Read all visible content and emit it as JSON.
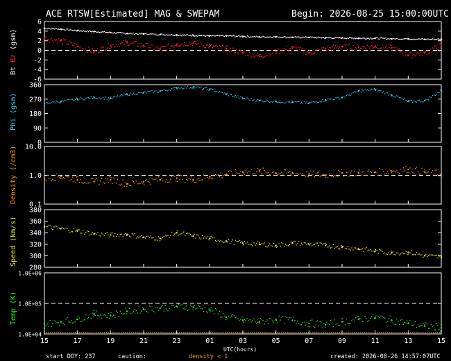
{
  "header": {
    "title": "ACE RTSW[Estimated] MAG & SWEPAM",
    "begin": "Begin: 2026-08-25 15:00:00UTC"
  },
  "footer": {
    "start_doy": "start DOY: 237",
    "caution": "caution:",
    "density_note": "density < 1",
    "created": "created: 2026-08-26 14:57:07UTC"
  },
  "x_axis": {
    "label": "UTC(hours)",
    "ticks": [
      "15",
      "17",
      "19",
      "21",
      "23",
      "01",
      "03",
      "05",
      "07",
      "09",
      "11",
      "13",
      "15"
    ]
  },
  "colors": {
    "bt": "#ffffff",
    "bz": "#ff2020",
    "phi": "#33ccee",
    "density": "#ff9900",
    "speed": "#eeee22",
    "temp": "#22ee22",
    "axes": "#ffffff"
  },
  "chart_data": [
    {
      "type": "scatter",
      "panel": "mag",
      "ylabel_parts": [
        "Bt",
        "Bz",
        "(gsm)"
      ],
      "ylim": [
        -6,
        6
      ],
      "yticks": [
        "6",
        "4",
        "2",
        "0",
        "-2",
        "-4",
        "-6"
      ],
      "dashed_zero": true,
      "x": [
        0,
        1,
        2,
        3,
        4,
        5,
        6,
        7,
        8,
        9,
        10,
        11,
        12,
        13,
        14,
        15,
        16,
        17,
        18,
        19,
        20,
        21,
        22,
        23,
        24
      ],
      "series": [
        {
          "name": "Bt",
          "values": [
            4.6,
            4.4,
            4.1,
            3.9,
            3.7,
            3.5,
            3.4,
            3.3,
            3.2,
            3.1,
            3.0,
            3.0,
            2.9,
            2.8,
            2.8,
            2.7,
            2.7,
            2.6,
            2.6,
            2.5,
            2.5,
            2.4,
            2.4,
            2.3,
            2.3
          ]
        },
        {
          "name": "Bz",
          "values": [
            2.5,
            2.0,
            0.8,
            -0.3,
            1.0,
            1.6,
            1.0,
            0.3,
            1.3,
            1.5,
            0.8,
            0.3,
            -0.5,
            -1.2,
            -0.2,
            0.5,
            -0.5,
            0.3,
            0.8,
            0.6,
            0.9,
            0.5,
            -1.0,
            -0.5,
            1.0
          ]
        }
      ]
    },
    {
      "type": "scatter",
      "panel": "phi",
      "ylabel": "Phi (gsm)",
      "ylim": [
        0,
        360
      ],
      "yticks": [
        "360",
        "270",
        "180",
        "90",
        "0"
      ],
      "x": [
        0,
        1,
        2,
        3,
        4,
        5,
        6,
        7,
        8,
        9,
        10,
        11,
        12,
        13,
        14,
        15,
        16,
        17,
        18,
        19,
        20,
        21,
        22,
        23,
        24
      ],
      "values": [
        245,
        255,
        270,
        280,
        275,
        300,
        310,
        320,
        340,
        345,
        330,
        300,
        275,
        260,
        255,
        250,
        245,
        265,
        280,
        320,
        330,
        295,
        255,
        260,
        325
      ]
    },
    {
      "type": "scatter",
      "panel": "density",
      "ylabel": "Density (/cm3)",
      "ylim": [
        0.1,
        10.0
      ],
      "log": true,
      "yticks": [
        "10.0",
        "1.0",
        "0.1"
      ],
      "dashed_value": 1.0,
      "x": [
        0,
        1,
        2,
        3,
        4,
        5,
        6,
        7,
        8,
        9,
        10,
        11,
        12,
        13,
        14,
        15,
        16,
        17,
        18,
        19,
        20,
        21,
        22,
        23,
        24
      ],
      "values": [
        0.8,
        0.9,
        0.7,
        0.6,
        0.7,
        0.5,
        0.6,
        0.7,
        0.8,
        0.7,
        0.9,
        1.1,
        1.3,
        1.4,
        1.2,
        1.2,
        1.1,
        1.0,
        1.2,
        1.2,
        1.3,
        1.4,
        1.6,
        1.3,
        1.1
      ]
    },
    {
      "type": "scatter",
      "panel": "speed",
      "ylabel": "Speed (km/s)",
      "ylim": [
        280,
        380
      ],
      "yticks": [
        "380",
        "360",
        "340",
        "320",
        "300",
        "280"
      ],
      "x": [
        0,
        1,
        2,
        3,
        4,
        5,
        6,
        7,
        8,
        9,
        10,
        11,
        12,
        13,
        14,
        15,
        16,
        17,
        18,
        19,
        20,
        21,
        22,
        23,
        24
      ],
      "values": [
        350,
        347,
        343,
        338,
        336,
        337,
        332,
        330,
        340,
        334,
        330,
        325,
        322,
        320,
        318,
        322,
        320,
        318,
        315,
        312,
        308,
        305,
        306,
        300,
        297
      ]
    },
    {
      "type": "scatter",
      "panel": "temp",
      "ylabel": "Temp (K)",
      "ylim": [
        10000,
        1000000
      ],
      "log": true,
      "yticks": [
        "1.0E+06",
        "1.0E+05",
        "1.0E+04"
      ],
      "dashed_value": 100000,
      "x": [
        0,
        1,
        2,
        3,
        4,
        5,
        6,
        7,
        8,
        9,
        10,
        11,
        12,
        13,
        14,
        15,
        16,
        17,
        18,
        19,
        20,
        21,
        22,
        23,
        24
      ],
      "values": [
        20000,
        25000,
        30000,
        45000,
        40000,
        55000,
        65000,
        70000,
        80000,
        75000,
        60000,
        35000,
        28000,
        25000,
        30000,
        28000,
        22000,
        20000,
        25000,
        30000,
        35000,
        28000,
        22000,
        18000,
        16000
      ]
    }
  ]
}
